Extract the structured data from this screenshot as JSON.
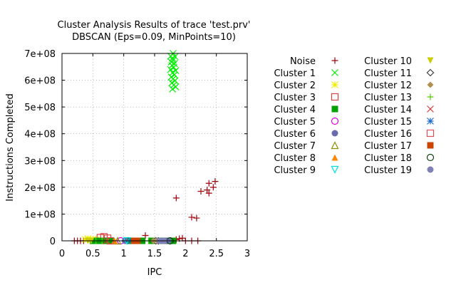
{
  "chart_data": {
    "type": "scatter",
    "title": "Cluster Analysis Results of trace 'test.prv'",
    "subtitle": "DBSCAN (Eps=0.09, MinPoints=10)",
    "xlabel": "IPC",
    "ylabel": "Instructions Completed",
    "xlim": [
      0,
      3
    ],
    "ylim": [
      0,
      700000000
    ],
    "x_ticks": [
      "0",
      "0.5",
      "1",
      "1.5",
      "2",
      "2.5",
      "3"
    ],
    "y_ticks": [
      "0",
      "1e+08",
      "2e+08",
      "3e+08",
      "4e+08",
      "5e+08",
      "6e+08",
      "7e+08"
    ],
    "grid": true,
    "legend_placement": "right, outside plot, two columns",
    "series": [
      {
        "name": "Noise",
        "marker": "plus",
        "color": "#a0000a",
        "points": [
          [
            0.2,
            0
          ],
          [
            0.25,
            0
          ],
          [
            0.3,
            0
          ],
          [
            0.35,
            0
          ],
          [
            1.35,
            20000000
          ],
          [
            1.85,
            5000000
          ],
          [
            1.9,
            8000000
          ],
          [
            1.95,
            10000000
          ],
          [
            2.0,
            0
          ],
          [
            2.1,
            0
          ],
          [
            2.2,
            0
          ],
          [
            1.85,
            160000000
          ],
          [
            2.1,
            88000000
          ],
          [
            2.18,
            85000000
          ],
          [
            2.25,
            185000000
          ],
          [
            2.35,
            190000000
          ],
          [
            2.38,
            215000000
          ],
          [
            2.38,
            178000000
          ],
          [
            2.45,
            200000000
          ],
          [
            2.48,
            222000000
          ]
        ]
      },
      {
        "name": "Cluster 1",
        "marker": "x",
        "color": "#00ee00",
        "points": [
          [
            1.76,
            690000000
          ],
          [
            1.79,
            683000000
          ],
          [
            1.83,
            688000000
          ],
          [
            1.8,
            675000000
          ],
          [
            1.77,
            668000000
          ],
          [
            1.82,
            662000000
          ],
          [
            1.78,
            655000000
          ],
          [
            1.81,
            648000000
          ],
          [
            1.76,
            640000000
          ],
          [
            1.84,
            636000000
          ],
          [
            1.79,
            628000000
          ],
          [
            1.82,
            620000000
          ],
          [
            1.77,
            612000000
          ],
          [
            1.8,
            605000000
          ],
          [
            1.83,
            598000000
          ],
          [
            1.78,
            590000000
          ],
          [
            1.81,
            582000000
          ],
          [
            1.84,
            575000000
          ],
          [
            1.79,
            567000000
          ],
          [
            1.8,
            700000000
          ]
        ]
      },
      {
        "name": "Cluster 2",
        "marker": "star",
        "color": "#eeee00",
        "points": [
          [
            0.38,
            5000000
          ],
          [
            0.42,
            8000000
          ],
          [
            0.46,
            3000000
          ],
          [
            0.5,
            6000000
          ],
          [
            0.55,
            4000000
          ]
        ]
      },
      {
        "name": "Cluster 3",
        "marker": "open-square",
        "color": "#e04040",
        "points": [
          [
            0.62,
            12000000
          ],
          [
            0.68,
            15000000
          ],
          [
            0.74,
            10000000
          ]
        ]
      },
      {
        "name": "Cluster 4",
        "marker": "filled-square",
        "color": "#00a000",
        "points": [
          [
            0.5,
            0
          ],
          [
            0.6,
            0
          ],
          [
            0.7,
            0
          ],
          [
            0.8,
            0
          ],
          [
            1.1,
            0
          ],
          [
            1.2,
            0
          ],
          [
            1.3,
            0
          ],
          [
            1.45,
            0
          ],
          [
            1.6,
            0
          ],
          [
            1.7,
            0
          ],
          [
            1.8,
            0
          ]
        ]
      },
      {
        "name": "Cluster 5",
        "marker": "open-circle",
        "color": "#e000e0",
        "points": [
          [
            0.95,
            0
          ]
        ]
      },
      {
        "name": "Cluster 6",
        "marker": "filled-circle",
        "color": "#6a6ab0",
        "points": [
          [
            1.02,
            0
          ],
          [
            1.62,
            0
          ],
          [
            1.68,
            0
          ],
          [
            1.72,
            0
          ]
        ]
      },
      {
        "name": "Cluster 7",
        "marker": "open-triangle",
        "color": "#909000",
        "points": [
          [
            0.9,
            0
          ]
        ]
      },
      {
        "name": "Cluster 8",
        "marker": "filled-triangle",
        "color": "#ff8800",
        "points": [
          [
            0.85,
            0
          ]
        ]
      },
      {
        "name": "Cluster 9",
        "marker": "open-triangle-down",
        "color": "#00e0e0",
        "points": [
          [
            1.05,
            0
          ]
        ]
      },
      {
        "name": "Cluster 10",
        "marker": "filled-triangle-down",
        "color": "#cccc00",
        "points": [
          [
            0.42,
            0
          ],
          [
            0.47,
            0
          ]
        ]
      },
      {
        "name": "Cluster 11",
        "marker": "open-diamond",
        "color": "#404040",
        "points": [
          [
            1.52,
            0
          ],
          [
            1.56,
            0
          ]
        ]
      },
      {
        "name": "Cluster 12",
        "marker": "filled-diamond",
        "color": "#b09050",
        "points": [
          [
            1.48,
            0
          ],
          [
            1.54,
            0
          ]
        ]
      },
      {
        "name": "Cluster 13",
        "marker": "plus",
        "color": "#55cc00",
        "points": [
          [
            0.55,
            0
          ],
          [
            0.65,
            0
          ],
          [
            0.75,
            0
          ],
          [
            1.15,
            0
          ],
          [
            1.25,
            0
          ],
          [
            1.4,
            0
          ]
        ]
      },
      {
        "name": "Cluster 14",
        "marker": "x",
        "color": "#dd3333",
        "points": [
          [
            0.72,
            0
          ]
        ]
      },
      {
        "name": "Cluster 15",
        "marker": "star",
        "color": "#1a6ad0",
        "points": [
          [
            1.12,
            0
          ]
        ]
      },
      {
        "name": "Cluster 16",
        "marker": "open-square",
        "color": "#e05050",
        "points": [
          [
            0.78,
            0
          ]
        ]
      },
      {
        "name": "Cluster 17",
        "marker": "filled-square",
        "color": "#cc4400",
        "points": [
          [
            1.17,
            0
          ],
          [
            1.22,
            0
          ]
        ]
      },
      {
        "name": "Cluster 18",
        "marker": "open-circle",
        "color": "#104010",
        "points": [
          [
            1.75,
            0
          ]
        ]
      },
      {
        "name": "Cluster 19",
        "marker": "filled-circle",
        "color": "#8080b8",
        "points": [
          [
            1.58,
            0
          ],
          [
            1.65,
            0
          ]
        ]
      }
    ]
  }
}
